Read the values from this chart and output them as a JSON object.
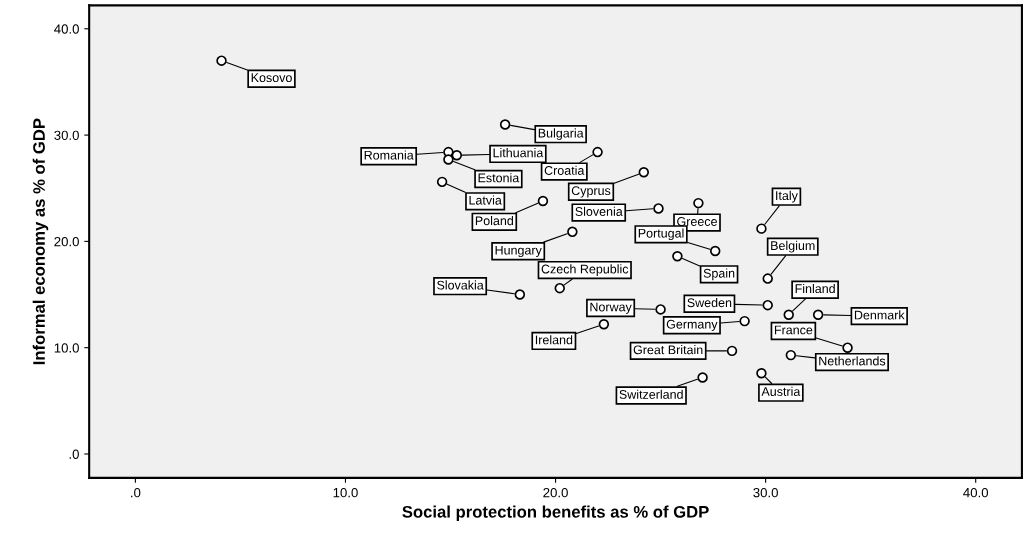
{
  "chart_data": {
    "type": "scatter",
    "xlabel": "Social protection benefits as % of GDP",
    "ylabel": "Informal economy as % of GDP",
    "x": [
      4.1,
      17.6,
      14.9,
      15.3,
      14.9,
      22.0,
      24.2,
      14.6,
      19.4,
      26.8,
      24.9,
      29.8,
      20.8,
      27.6,
      25.8,
      30.1,
      20.2,
      18.3,
      30.1,
      25.0,
      31.1,
      32.5,
      29.0,
      22.3,
      33.9,
      28.4,
      31.2,
      29.8,
      27.0
    ],
    "series": [
      {
        "color": "#000000",
        "values": [
          37.0,
          31.0,
          28.4,
          28.1,
          27.7,
          28.4,
          26.5,
          25.6,
          23.8,
          23.6,
          23.1,
          21.2,
          20.9,
          19.1,
          18.6,
          16.5,
          15.6,
          15.0,
          14.0,
          13.6,
          13.1,
          13.1,
          12.5,
          12.2,
          10.0,
          9.7,
          9.3,
          7.6,
          7.2
        ]
      }
    ],
    "annotations": [
      {
        "text": "Kosovo",
        "x": 4.1,
        "y": 37.0
      },
      {
        "text": "Bulgaria",
        "x": 17.6,
        "y": 31.0
      },
      {
        "text": "Romania",
        "x": 14.9,
        "y": 28.4
      },
      {
        "text": "Lithuania",
        "x": 15.3,
        "y": 28.1
      },
      {
        "text": "Estonia",
        "x": 14.9,
        "y": 27.7
      },
      {
        "text": "Croatia",
        "x": 22.0,
        "y": 28.4
      },
      {
        "text": "Cyprus",
        "x": 24.2,
        "y": 26.5
      },
      {
        "text": "Latvia",
        "x": 14.6,
        "y": 25.6
      },
      {
        "text": "Poland",
        "x": 19.4,
        "y": 23.8
      },
      {
        "text": "Greece",
        "x": 26.8,
        "y": 23.6
      },
      {
        "text": "Slovenia",
        "x": 24.9,
        "y": 23.1
      },
      {
        "text": "Italy",
        "x": 29.8,
        "y": 21.2
      },
      {
        "text": "Hungary",
        "x": 20.8,
        "y": 20.9
      },
      {
        "text": "Portugal",
        "x": 27.6,
        "y": 19.1
      },
      {
        "text": "Spain",
        "x": 25.8,
        "y": 18.6
      },
      {
        "text": "Belgium",
        "x": 30.1,
        "y": 16.5
      },
      {
        "text": "Czech Republic",
        "x": 20.2,
        "y": 15.6
      },
      {
        "text": "Slovakia",
        "x": 18.3,
        "y": 15.0
      },
      {
        "text": "Sweden",
        "x": 30.1,
        "y": 14.0
      },
      {
        "text": "Norway",
        "x": 25.0,
        "y": 13.6
      },
      {
        "text": "Finland",
        "x": 31.1,
        "y": 13.1
      },
      {
        "text": "Denmark",
        "x": 32.5,
        "y": 13.1
      },
      {
        "text": "Germany",
        "x": 29.0,
        "y": 12.5
      },
      {
        "text": "Ireland",
        "x": 22.3,
        "y": 12.2
      },
      {
        "text": "France",
        "x": 33.9,
        "y": 10.0
      },
      {
        "text": "Great Britain",
        "x": 28.4,
        "y": 9.7
      },
      {
        "text": "Netherlands",
        "x": 31.2,
        "y": 9.3
      },
      {
        "text": "Austria",
        "x": 29.8,
        "y": 7.6
      },
      {
        "text": "Switzerland",
        "x": 27.0,
        "y": 7.2
      }
    ],
    "xlim": [
      -2.2,
      42.2
    ],
    "ylim": [
      -2.25,
      42.2
    ],
    "xticks": [
      {
        "value": 0,
        "label": ".0"
      },
      {
        "value": 10,
        "label": "10.0"
      },
      {
        "value": 20,
        "label": "20.0"
      },
      {
        "value": 30,
        "label": "30.0"
      },
      {
        "value": 40,
        "label": "40.0"
      }
    ],
    "yticks": [
      {
        "value": 0,
        "label": ".0"
      },
      {
        "value": 10,
        "label": "10.0"
      },
      {
        "value": 20,
        "label": "20.0"
      },
      {
        "value": 30,
        "label": "30.0"
      },
      {
        "value": 40,
        "label": "40.0"
      }
    ],
    "grid": false,
    "marker": "circle"
  }
}
